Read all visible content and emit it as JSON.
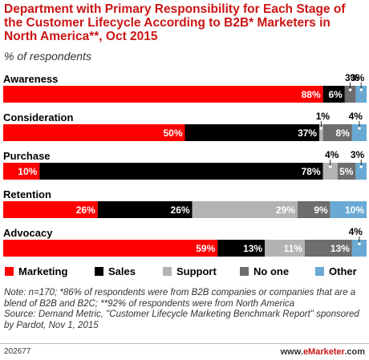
{
  "title": "Department with Primary Responsibility for Each Stage of the Customer Lifecycle According to B2B* Marketers in North America**, Oct 2015",
  "subtitle": "% of respondents",
  "chart_data": {
    "type": "bar",
    "orientation": "horizontal",
    "stacked": true,
    "categories": [
      "Awareness",
      "Consideration",
      "Purchase",
      "Retention",
      "Advocacy"
    ],
    "series": [
      {
        "name": "Marketing",
        "color": "#ff0000",
        "values": [
          88,
          50,
          10,
          26,
          59
        ]
      },
      {
        "name": "Sales",
        "color": "#000000",
        "values": [
          6,
          37,
          78,
          26,
          13
        ]
      },
      {
        "name": "Support",
        "color": "#b3b3b3",
        "values": [
          0,
          1,
          4,
          29,
          11
        ]
      },
      {
        "name": "No one",
        "color": "#6d6d6d",
        "values": [
          3,
          8,
          5,
          9,
          13
        ]
      },
      {
        "name": "Other",
        "color": "#69a9d3",
        "values": [
          3,
          4,
          3,
          10,
          4
        ]
      }
    ],
    "legend_position": "bottom",
    "grid": false
  },
  "legend": [
    "Marketing",
    "Sales",
    "Support",
    "No one",
    "Other"
  ],
  "note": "Note: n=170; *86% of respondents were from B2B companies or companies that are a blend of B2B and B2C; **92% of respondents were from North America\nSource: Demand Metric, \"Customer Lifecycle Marketing Benchmark Report\" sponsored by Pardot, Nov 1, 2015",
  "footer": {
    "id": "202677",
    "site_prefix": "www.",
    "site_brand": "eMarketer",
    "site_suffix": ".com"
  }
}
